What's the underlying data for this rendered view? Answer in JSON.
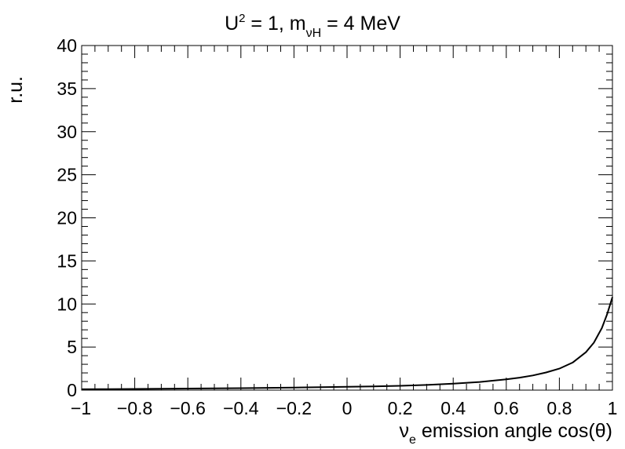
{
  "chart_data": {
    "type": "line",
    "title": {
      "base": "U",
      "sup": "2",
      "middle": " = 1, m",
      "sub": "νH",
      "tail": " = 4 MeV"
    },
    "xlabel": {
      "base": "ν",
      "sub": "e",
      "tail": " emission angle cos(θ)"
    },
    "ylabel": "r.u.",
    "xlim": [
      -1,
      1
    ],
    "ylim": [
      0,
      40
    ],
    "x_ticks": [
      -1,
      -0.8,
      -0.6,
      -0.4,
      -0.2,
      0,
      0.2,
      0.4,
      0.6,
      0.8,
      1
    ],
    "x_tick_labels": [
      "−1",
      "−0.8",
      "−0.6",
      "−0.4",
      "−0.2",
      "0",
      "0.2",
      "0.4",
      "0.6",
      "0.8",
      "1"
    ],
    "y_ticks": [
      0,
      5,
      10,
      15,
      20,
      25,
      30,
      35,
      40
    ],
    "y_tick_labels": [
      "0",
      "5",
      "10",
      "15",
      "20",
      "25",
      "30",
      "35",
      "40"
    ],
    "grid": false,
    "series": [
      {
        "color": "#000000",
        "x": [
          -1,
          -0.9,
          -0.8,
          -0.7,
          -0.6,
          -0.5,
          -0.4,
          -0.3,
          -0.2,
          -0.1,
          0,
          0.1,
          0.2,
          0.3,
          0.4,
          0.5,
          0.6,
          0.65,
          0.7,
          0.75,
          0.8,
          0.85,
          0.9,
          0.93,
          0.96,
          0.98,
          1.0
        ],
        "y": [
          0.1,
          0.12,
          0.14,
          0.16,
          0.18,
          0.2,
          0.23,
          0.26,
          0.3,
          0.34,
          0.38,
          0.44,
          0.5,
          0.6,
          0.75,
          0.95,
          1.25,
          1.45,
          1.7,
          2.05,
          2.5,
          3.2,
          4.4,
          5.5,
          7.2,
          8.8,
          10.8
        ]
      }
    ]
  }
}
